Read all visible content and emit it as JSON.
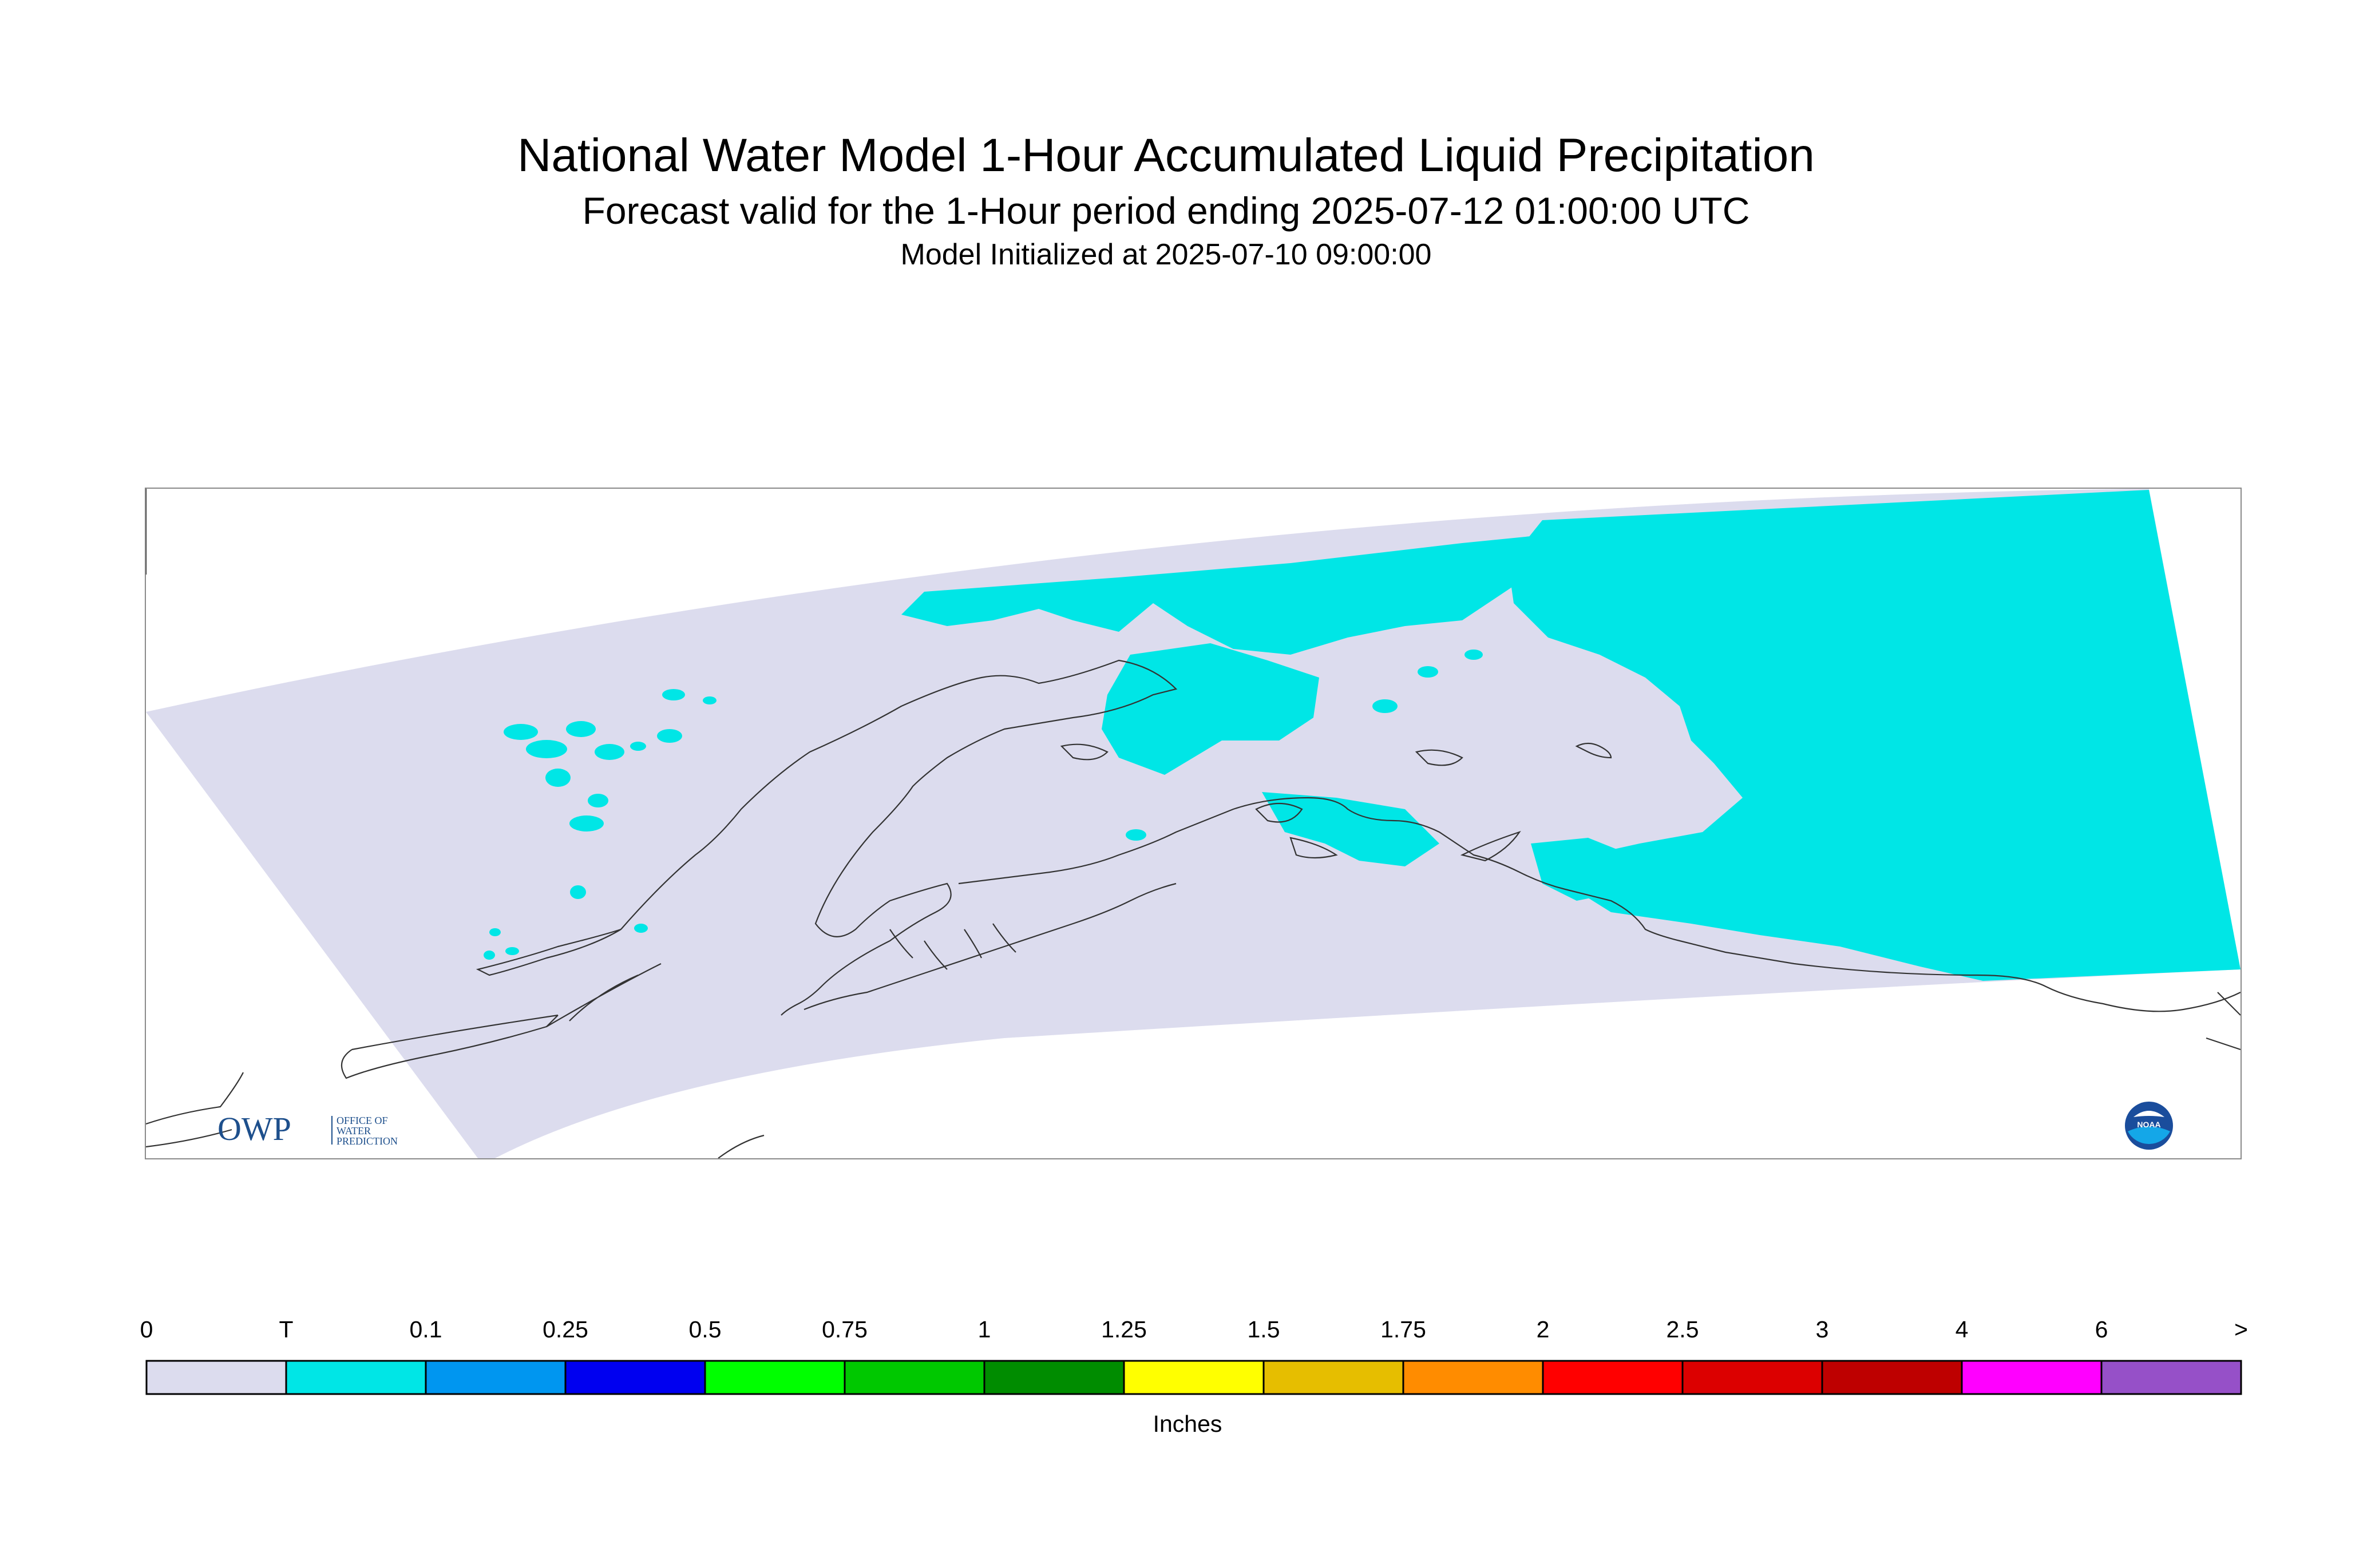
{
  "title": "National Water Model 1-Hour Accumulated Liquid Precipitation",
  "subtitle": "Forecast valid for the 1-Hour period ending 2025-07-12 01:00:00 UTC",
  "initialized": "Model Initialized at 2025-07-10 09:00:00",
  "legend": {
    "unit_label": "Inches",
    "ticks": [
      "0",
      "T",
      "0.1",
      "0.25",
      "0.5",
      "0.75",
      "1",
      "1.25",
      "1.5",
      "1.75",
      "2",
      "2.5",
      "3",
      "4",
      "6",
      ">"
    ],
    "bins": [
      {
        "from": "0",
        "to": "T",
        "color": "#dcdcee"
      },
      {
        "from": "T",
        "to": "0.1",
        "color": "#00e6e6"
      },
      {
        "from": "0.1",
        "to": "0.25",
        "color": "#0096f0"
      },
      {
        "from": "0.25",
        "to": "0.5",
        "color": "#0000f0"
      },
      {
        "from": "0.5",
        "to": "0.75",
        "color": "#00ff00"
      },
      {
        "from": "0.75",
        "to": "1",
        "color": "#00c800"
      },
      {
        "from": "1",
        "to": "1.25",
        "color": "#008c00"
      },
      {
        "from": "1.25",
        "to": "1.5",
        "color": "#ffff00"
      },
      {
        "from": "1.5",
        "to": "1.75",
        "color": "#e6be00"
      },
      {
        "from": "1.75",
        "to": "2",
        "color": "#ff8c00"
      },
      {
        "from": "2",
        "to": "2.5",
        "color": "#ff0000"
      },
      {
        "from": "2.5",
        "to": "3",
        "color": "#dc0000"
      },
      {
        "from": "3",
        "to": "4",
        "color": "#be0000"
      },
      {
        "from": "4",
        "to": "6",
        "color": "#ff00ff"
      },
      {
        "from": "6",
        "to": ">",
        "color": "#9650c8"
      }
    ]
  },
  "map": {
    "domain_fill": "#dcdcee",
    "precip_fill": "#00e6e6",
    "coast_color": "#333333",
    "dominant_category": "T-0.1"
  },
  "logos": {
    "owp": {
      "mark": "OWP",
      "line1": "OFFICE OF",
      "line2": "WATER",
      "line3": "PREDICTION"
    },
    "noaa": {
      "mark": "NOAA"
    }
  }
}
